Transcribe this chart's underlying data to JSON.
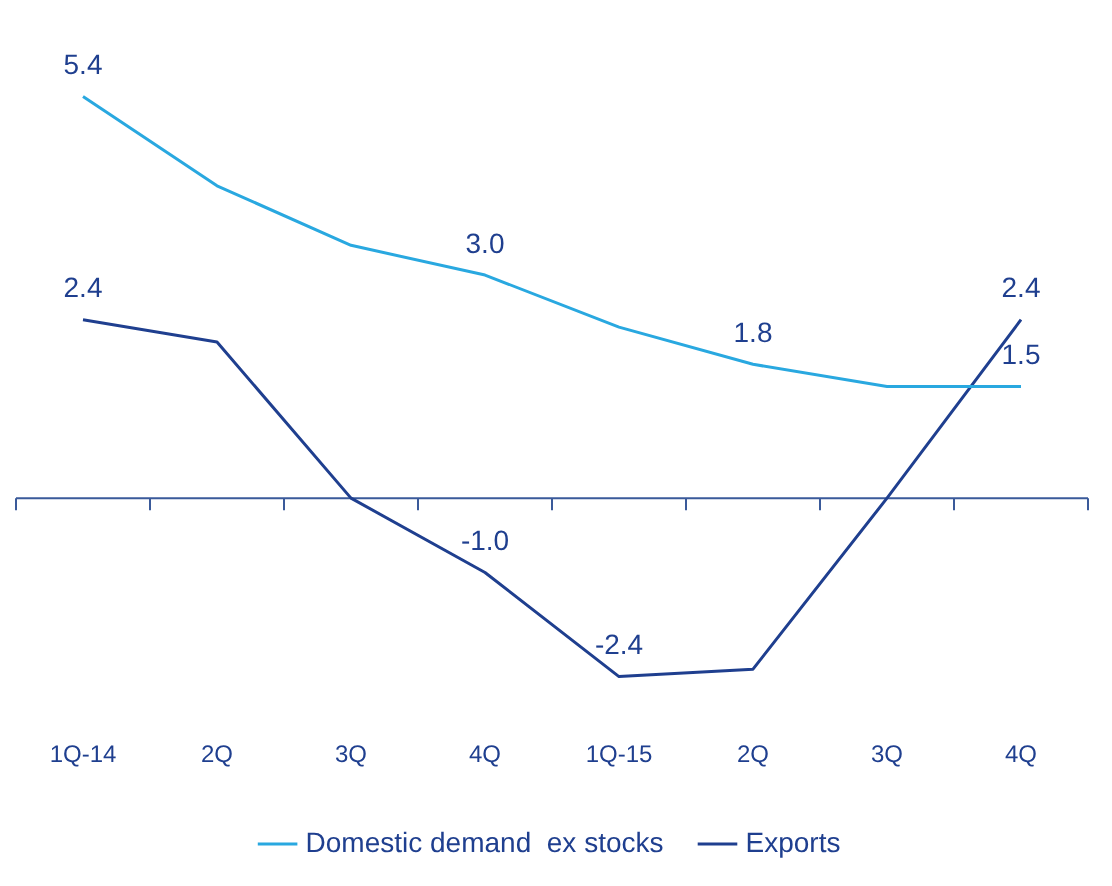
{
  "chart_data": {
    "type": "line",
    "categories": [
      "1Q-14",
      "2Q",
      "3Q",
      "4Q",
      "1Q-15",
      "2Q",
      "3Q",
      "4Q"
    ],
    "series": [
      {
        "name": "Domestic demand  ex stocks",
        "color": "#29a8e0",
        "values": [
          5.4,
          4.2,
          3.4,
          3.0,
          2.3,
          1.8,
          1.5,
          1.5
        ],
        "value_labels": [
          "5.4",
          null,
          null,
          "3.0",
          null,
          "1.8",
          null,
          "1.5"
        ]
      },
      {
        "name": "Exports",
        "color": "#1f3f8f",
        "values": [
          2.4,
          2.1,
          0.0,
          -1.0,
          -2.4,
          -2.3,
          0.0,
          2.4
        ],
        "value_labels": [
          "2.4",
          null,
          null,
          "-1.0",
          "-2.4",
          null,
          null,
          "2.4"
        ]
      }
    ],
    "ref_lines": [
      {
        "axis": "y",
        "value": 0,
        "color": "#3a5a9a"
      }
    ],
    "grid": false,
    "legend": "bottom",
    "marker": "none",
    "line_style": "solid"
  }
}
